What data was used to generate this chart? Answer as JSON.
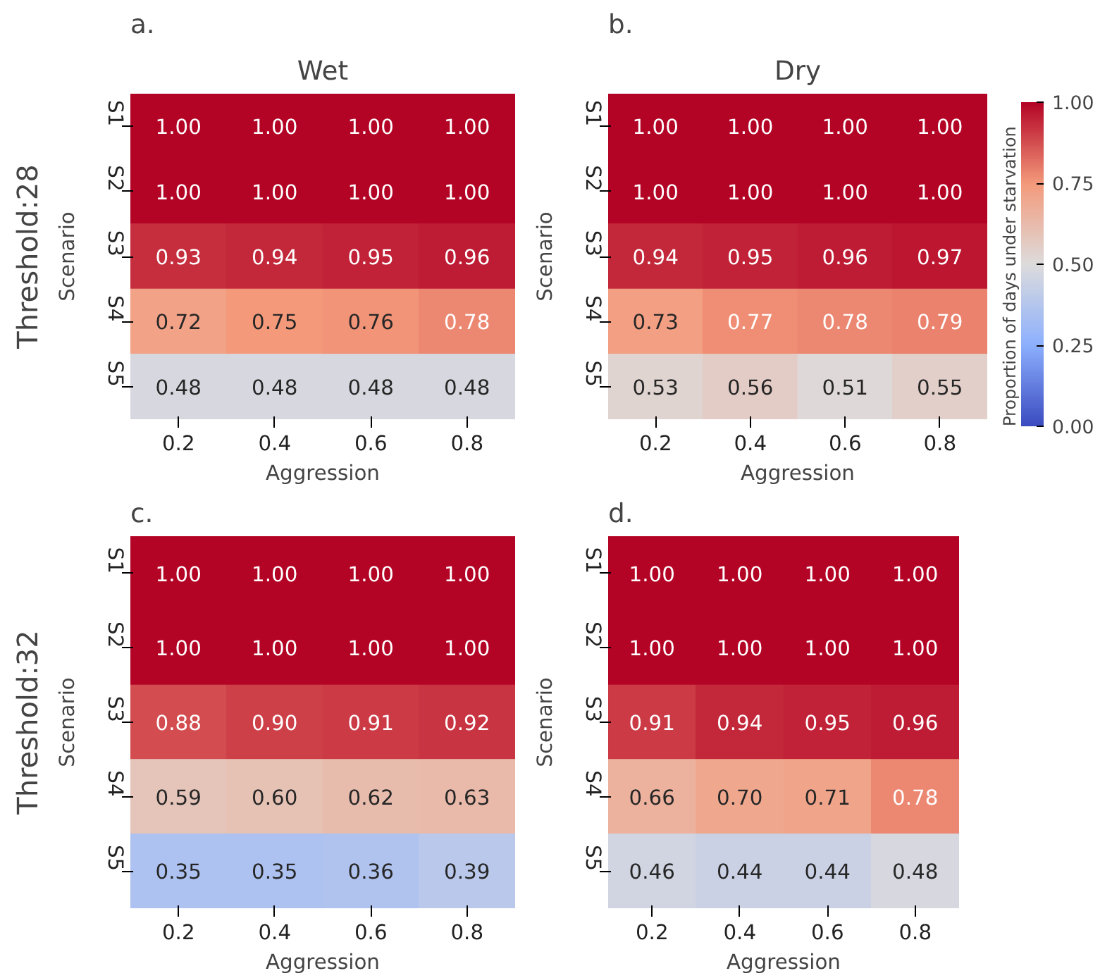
{
  "chart_data": [
    {
      "type": "heatmap",
      "title": "Wet",
      "xlabel": "Aggression",
      "ylabel": "Scenario",
      "annotations": [
        "a.",
        "Threshold:28"
      ],
      "categories": [
        "0.2",
        "0.4",
        "0.6",
        "0.8"
      ],
      "y_categories": [
        "S1",
        "S2",
        "S3",
        "S4",
        "S5"
      ],
      "cells": [
        [
          1,
          1,
          1,
          1
        ],
        [
          1,
          1,
          1,
          1
        ],
        [
          0.93,
          0.94,
          0.95,
          0.96
        ],
        [
          0.72,
          0.75,
          0.76,
          0.78
        ],
        [
          0.48,
          0.48,
          0.48,
          0.48
        ]
      ],
      "cell_labels": [
        [
          "1.00",
          "1.00",
          "1.00",
          "1.00"
        ],
        [
          "1.00",
          "1.00",
          "1.00",
          "1.00"
        ],
        [
          "0.93",
          "0.94",
          "0.95",
          "0.96"
        ],
        [
          "0.72",
          "0.75",
          "0.76",
          "0.78"
        ],
        [
          "0.48",
          "0.48",
          "0.48",
          "0.48"
        ]
      ]
    },
    {
      "type": "heatmap",
      "title": "Dry",
      "xlabel": "Aggression",
      "ylabel": "Scenario",
      "annotations": [
        "b."
      ],
      "categories": [
        "0.2",
        "0.4",
        "0.6",
        "0.8"
      ],
      "y_categories": [
        "S1",
        "S2",
        "S3",
        "S4",
        "S5"
      ],
      "clim": [
        0,
        1
      ],
      "clabel": "Proportion of days under starvation",
      "cticks": [
        {
          "value": 0,
          "label": "0.00"
        },
        {
          "value": 0.25,
          "label": "0.25"
        },
        {
          "value": 0.5,
          "label": "0.50"
        },
        {
          "value": 0.75,
          "label": "0.75"
        },
        {
          "value": 1,
          "label": "1.00"
        }
      ],
      "cells": [
        [
          1,
          1,
          1,
          1
        ],
        [
          1,
          1,
          1,
          1
        ],
        [
          0.94,
          0.95,
          0.96,
          0.97
        ],
        [
          0.73,
          0.77,
          0.78,
          0.79
        ],
        [
          0.53,
          0.56,
          0.51,
          0.55
        ]
      ],
      "cell_labels": [
        [
          "1.00",
          "1.00",
          "1.00",
          "1.00"
        ],
        [
          "1.00",
          "1.00",
          "1.00",
          "1.00"
        ],
        [
          "0.94",
          "0.95",
          "0.96",
          "0.97"
        ],
        [
          "0.73",
          "0.77",
          "0.78",
          "0.79"
        ],
        [
          "0.53",
          "0.56",
          "0.51",
          "0.55"
        ]
      ]
    },
    {
      "type": "heatmap",
      "xlabel": "Aggression",
      "ylabel": "Scenario",
      "annotations": [
        "c.",
        "Threshold:32"
      ],
      "categories": [
        "0.2",
        "0.4",
        "0.6",
        "0.8"
      ],
      "y_categories": [
        "S1",
        "S2",
        "S3",
        "S4",
        "S5"
      ],
      "cells": [
        [
          1,
          1,
          1,
          1
        ],
        [
          1,
          1,
          1,
          1
        ],
        [
          0.88,
          0.9,
          0.91,
          0.92
        ],
        [
          0.59,
          0.6,
          0.62,
          0.63
        ],
        [
          0.35,
          0.35,
          0.36,
          0.39
        ]
      ],
      "cell_labels": [
        [
          "1.00",
          "1.00",
          "1.00",
          "1.00"
        ],
        [
          "1.00",
          "1.00",
          "1.00",
          "1.00"
        ],
        [
          "0.88",
          "0.90",
          "0.91",
          "0.92"
        ],
        [
          "0.59",
          "0.60",
          "0.62",
          "0.63"
        ],
        [
          "0.35",
          "0.35",
          "0.36",
          "0.39"
        ]
      ]
    },
    {
      "type": "heatmap",
      "xlabel": "Aggression",
      "ylabel": "Scenario",
      "annotations": [
        "d."
      ],
      "categories": [
        "0.2",
        "0.4",
        "0.6",
        "0.8"
      ],
      "y_categories": [
        "S1",
        "S2",
        "S3",
        "S4",
        "S5"
      ],
      "cells": [
        [
          1,
          1,
          1,
          1
        ],
        [
          1,
          1,
          1,
          1
        ],
        [
          0.91,
          0.94,
          0.95,
          0.96
        ],
        [
          0.66,
          0.7,
          0.71,
          0.78
        ],
        [
          0.46,
          0.44,
          0.44,
          0.48
        ]
      ],
      "cell_labels": [
        [
          "1.00",
          "1.00",
          "1.00",
          "1.00"
        ],
        [
          "1.00",
          "1.00",
          "1.00",
          "1.00"
        ],
        [
          "0.91",
          "0.94",
          "0.95",
          "0.96"
        ],
        [
          "0.66",
          "0.70",
          "0.71",
          "0.78"
        ],
        [
          "0.46",
          "0.44",
          "0.44",
          "0.48"
        ]
      ]
    }
  ]
}
